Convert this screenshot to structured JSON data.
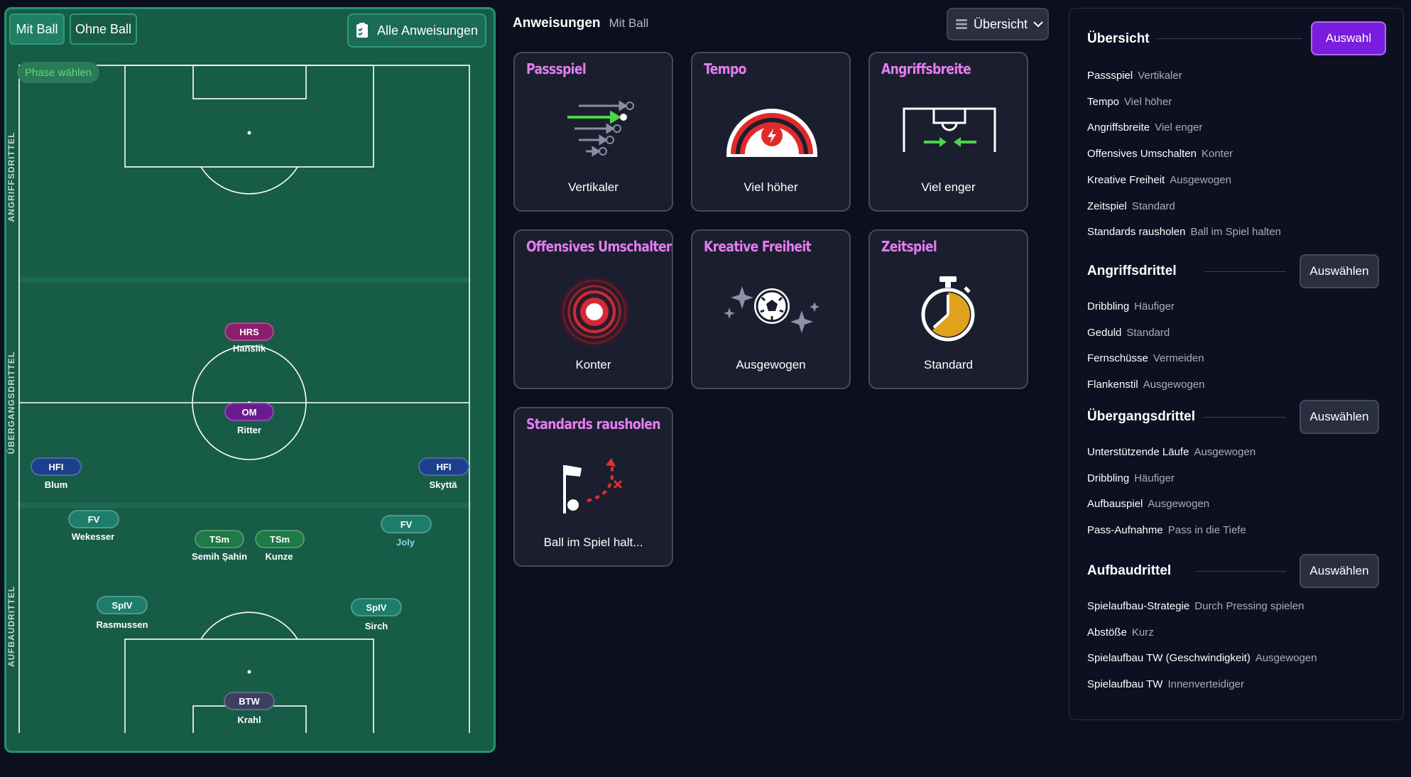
{
  "left_panel": {
    "toggle_with_ball": "Mit Ball",
    "toggle_without_ball": "Ohne Ball",
    "all_instructions_label": "Alle Anweisungen",
    "phase_select_label": "Phase wählen",
    "thirds": [
      "ANGRIFFSDRITTEL",
      "ÜBERGANGSDRITTEL",
      "AUFBAUDRITTEL"
    ],
    "players": [
      {
        "pos": "HRS",
        "name": "Hanslik",
        "color": "#8b1f6e"
      },
      {
        "pos": "OM",
        "name": "Ritter",
        "color": "#6a1c8f"
      },
      {
        "pos": "HFI",
        "name": "Blum",
        "color": "#1b3f8a"
      },
      {
        "pos": "HFI",
        "name": "Skyttä",
        "color": "#1b3f8a"
      },
      {
        "pos": "FV",
        "name": "Wekesser",
        "color": "#1d7d6a"
      },
      {
        "pos": "TSm",
        "name": "Semih Şahin",
        "color": "#1e7a46"
      },
      {
        "pos": "TSm",
        "name": "Kunze",
        "color": "#1e7a46"
      },
      {
        "pos": "FV",
        "name": "Joly",
        "color": "#1d7d6a",
        "name_color": "#8dd3e9"
      },
      {
        "pos": "SpIV",
        "name": "Rasmussen",
        "color": "#1d7d6a"
      },
      {
        "pos": "SpIV",
        "name": "Sirch",
        "color": "#1d7d6a"
      },
      {
        "pos": "BTW",
        "name": "Krahl",
        "color": "#3b3f60"
      }
    ]
  },
  "header": {
    "title": "Anweisungen",
    "subtitle": "Mit Ball",
    "view_select": "Übersicht"
  },
  "cards": [
    {
      "title": "Passspiel",
      "value": "Vertikaler",
      "icon": "passing-arrows-icon"
    },
    {
      "title": "Tempo",
      "value": "Viel höher",
      "icon": "tempo-gauge-icon"
    },
    {
      "title": "Angriffsbreite",
      "value": "Viel enger",
      "icon": "goal-width-icon"
    },
    {
      "title": "Offensives Umschalten",
      "value": "Konter",
      "icon": "target-rings-icon"
    },
    {
      "title": "Kreative Freiheit",
      "value": "Ausgewogen",
      "icon": "sparkle-ball-icon"
    },
    {
      "title": "Zeitspiel",
      "value": "Standard",
      "icon": "stopwatch-icon"
    },
    {
      "title": "Standards rausholen",
      "value": "Ball im Spiel halt...",
      "icon": "corner-flag-icon"
    }
  ],
  "right_panel": {
    "overview": {
      "title": "Übersicht",
      "button": "Auswahl",
      "items": [
        {
          "k": "Passspiel",
          "v": "Vertikaler"
        },
        {
          "k": "Tempo",
          "v": "Viel höher"
        },
        {
          "k": "Angriffsbreite",
          "v": "Viel enger"
        },
        {
          "k": "Offensives Umschalten",
          "v": "Konter"
        },
        {
          "k": "Kreative Freiheit",
          "v": "Ausgewogen"
        },
        {
          "k": "Zeitspiel",
          "v": "Standard"
        },
        {
          "k": "Standards rausholen",
          "v": "Ball im Spiel halten"
        }
      ]
    },
    "sections": [
      {
        "title": "Angriffsdrittel",
        "button": "Auswählen",
        "items": [
          {
            "k": "Dribbling",
            "v": "Häufiger"
          },
          {
            "k": "Geduld",
            "v": "Standard"
          },
          {
            "k": "Fernschüsse",
            "v": "Vermeiden"
          },
          {
            "k": "Flankenstil",
            "v": "Ausgewogen"
          }
        ]
      },
      {
        "title": "Übergangsdrittel",
        "button": "Auswählen",
        "items": [
          {
            "k": "Unterstützende Läufe",
            "v": "Ausgewogen"
          },
          {
            "k": "Dribbling",
            "v": "Häufiger"
          },
          {
            "k": "Aufbauspiel",
            "v": "Ausgewogen"
          },
          {
            "k": "Pass-Aufnahme",
            "v": "Pass in die Tiefe"
          }
        ]
      },
      {
        "title": "Aufbaudrittel",
        "button": "Auswählen",
        "items": [
          {
            "k": "Spielaufbau-Strategie",
            "v": "Durch Pressing spielen"
          },
          {
            "k": "Abstöße",
            "v": "Kurz"
          },
          {
            "k": "Spielaufbau TW (Geschwindigkeit)",
            "v": "Ausgewogen"
          },
          {
            "k": "Spielaufbau TW",
            "v": "Innenverteidiger"
          }
        ]
      }
    ]
  },
  "colors": {
    "accent": "#7a1dde",
    "card_title": "#e47df0",
    "pitch": "#175c47",
    "background": "#0b0f1e"
  }
}
